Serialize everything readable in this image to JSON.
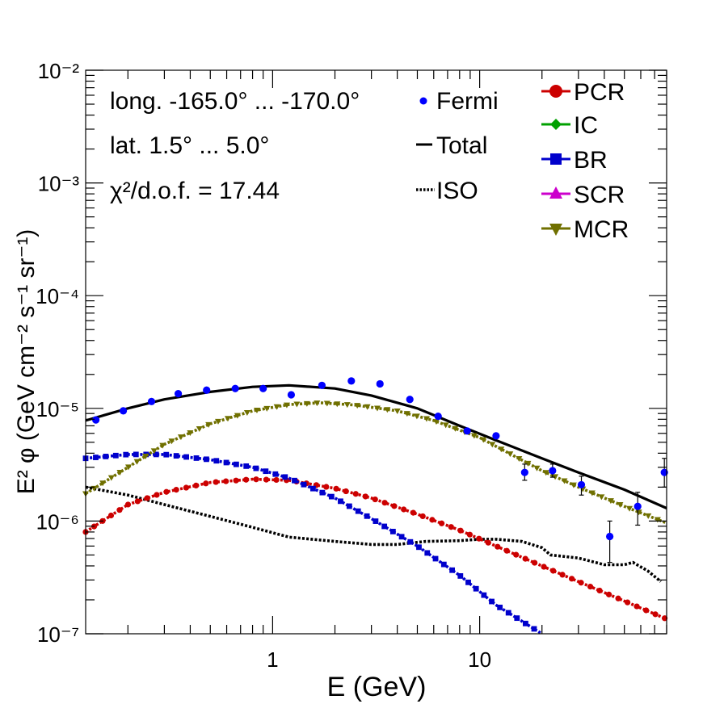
{
  "chart_data": {
    "type": "line",
    "xscale": "log",
    "yscale": "log",
    "xlim": [
      0.125,
      80
    ],
    "ylim": [
      1e-07,
      0.01
    ],
    "xlabel": "E (GeV)",
    "ylabel": "E² φ (GeV cm⁻² s⁻¹ sr⁻¹)",
    "x_tick_labels": [
      "1",
      "10"
    ],
    "y_tick_labels": [
      "10⁻⁷",
      "10⁻⁶",
      "10⁻⁵",
      "10⁻⁴",
      "10⁻³",
      "10⁻²"
    ],
    "annotations": {
      "longitude": "long. -165.0° ... -170.0°",
      "latitude": "lat. 1.5° ... 5.0°",
      "chi2": "χ²/d.o.f. = 17.44"
    },
    "legend_left": [
      {
        "key": "fermi",
        "label": "Fermi",
        "color": "#0000ff",
        "marker": "dot"
      },
      {
        "key": "total",
        "label": "Total",
        "color": "#000000",
        "marker": "line"
      },
      {
        "key": "iso",
        "label": "ISO",
        "color": "#000000",
        "marker": "dotted-line"
      }
    ],
    "legend_right": [
      {
        "key": "pcr",
        "label": "PCR",
        "color": "#cc0000",
        "marker": "circle"
      },
      {
        "key": "ic",
        "label": "IC",
        "color": "#00a000",
        "marker": "diamond"
      },
      {
        "key": "br",
        "label": "BR",
        "color": "#0000cc",
        "marker": "square"
      },
      {
        "key": "scr",
        "label": "SCR",
        "color": "#cc00cc",
        "marker": "triangle-up"
      },
      {
        "key": "mcr",
        "label": "MCR",
        "color": "#707000",
        "marker": "triangle-down"
      }
    ],
    "fermi": {
      "name": "Fermi",
      "color": "#0000ff",
      "points": [
        {
          "x": 0.14,
          "y": 7.9e-06
        },
        {
          "x": 0.19,
          "y": 9.5e-06
        },
        {
          "x": 0.26,
          "y": 1.15e-05
        },
        {
          "x": 0.35,
          "y": 1.35e-05
        },
        {
          "x": 0.48,
          "y": 1.45e-05
        },
        {
          "x": 0.66,
          "y": 1.5e-05
        },
        {
          "x": 0.9,
          "y": 1.5e-05
        },
        {
          "x": 1.23,
          "y": 1.32e-05
        },
        {
          "x": 1.73,
          "y": 1.6e-05
        },
        {
          "x": 2.4,
          "y": 1.75e-05
        },
        {
          "x": 3.3,
          "y": 1.65e-05
        },
        {
          "x": 4.6,
          "y": 1.2e-05
        },
        {
          "x": 6.3,
          "y": 8.5e-06
        },
        {
          "x": 8.7,
          "y": 6.3e-06
        },
        {
          "x": 12.0,
          "y": 5.7e-06
        },
        {
          "x": 16.5,
          "y": 2.7e-06,
          "ylo": 2.3e-06,
          "yhi": 3.2e-06
        },
        {
          "x": 22.5,
          "y": 2.8e-06,
          "ylo": 2.45e-06,
          "yhi": 3.2e-06
        },
        {
          "x": 31.0,
          "y": 2.1e-06,
          "ylo": 1.7e-06,
          "yhi": 2.5e-06
        },
        {
          "x": 42.5,
          "y": 7.3e-07,
          "ylo": 4.3e-07,
          "yhi": 1e-06
        },
        {
          "x": 58.0,
          "y": 1.35e-06,
          "ylo": 9.2e-07,
          "yhi": 1.8e-06
        },
        {
          "x": 78.0,
          "y": 2.7e-06,
          "ylo": 2e-06,
          "yhi": 3.6e-06
        }
      ]
    },
    "series": [
      {
        "name": "Total",
        "color": "#000000",
        "style": "solid",
        "x": [
          0.125,
          0.2,
          0.3,
          0.5,
          0.8,
          1.2,
          2.0,
          3.0,
          5.0,
          8.0,
          12.0,
          20.0,
          30.0,
          50.0,
          80.0
        ],
        "y": [
          7.8e-06,
          1e-05,
          1.2e-05,
          1.4e-05,
          1.55e-05,
          1.6e-05,
          1.5e-05,
          1.3e-05,
          1e-05,
          7e-06,
          5.2e-06,
          3.6e-06,
          2.7e-06,
          1.9e-06,
          1.3e-06
        ]
      },
      {
        "name": "ISO",
        "color": "#000000",
        "style": "dotted",
        "x": [
          0.125,
          0.2,
          0.3,
          0.5,
          0.8,
          1.2,
          2.0,
          3.0,
          4.0,
          5.5,
          8.0,
          10.0,
          12.0,
          16.0,
          20.0,
          22.0,
          30.0,
          40.0,
          50.0,
          55.0,
          65.0,
          75.0
        ],
        "y": [
          2e-06,
          1.7e-06,
          1.4e-06,
          1.1e-06,
          8.8e-07,
          7.2e-07,
          6.6e-07,
          6.2e-07,
          6.2e-07,
          6.6e-07,
          6.7e-07,
          6.9e-07,
          6.9e-07,
          6.6e-07,
          5.8e-07,
          5e-07,
          4.7e-07,
          4.1e-07,
          4.1e-07,
          4.3e-07,
          3.6e-07,
          2.9e-07
        ]
      },
      {
        "name": "PCR",
        "color": "#cc0000",
        "style": "dotted",
        "marker": "circle",
        "x": [
          0.125,
          0.2,
          0.3,
          0.5,
          0.8,
          1.2,
          2.0,
          3.0,
          5.0,
          8.0,
          12.0,
          20.0,
          30.0,
          50.0,
          80.0
        ],
        "y": [
          8e-07,
          1.4e-06,
          1.8e-06,
          2.2e-06,
          2.35e-06,
          2.3e-06,
          1.95e-06,
          1.6e-06,
          1.15e-06,
          8.3e-07,
          6e-07,
          4e-07,
          2.9e-07,
          1.95e-07,
          1.35e-07
        ]
      },
      {
        "name": "BR",
        "color": "#0000cc",
        "style": "dotted",
        "marker": "square",
        "x": [
          0.125,
          0.2,
          0.3,
          0.5,
          0.8,
          1.2,
          2.0,
          3.0,
          5.0,
          8.0,
          12.0,
          20.0
        ],
        "y": [
          3.6e-06,
          3.9e-06,
          3.9e-06,
          3.5e-06,
          3e-06,
          2.4e-06,
          1.6e-06,
          1.05e-06,
          6e-07,
          3.3e-07,
          1.8e-07,
          1e-07
        ]
      },
      {
        "name": "MCR",
        "color": "#707000",
        "style": "dotted",
        "marker": "triangle-down",
        "x": [
          0.125,
          0.2,
          0.3,
          0.5,
          0.8,
          1.2,
          1.7,
          2.5,
          4.0,
          6.0,
          10.0,
          15.0,
          20.0,
          30.0,
          50.0,
          80.0
        ],
        "y": [
          1.75e-06,
          3e-06,
          4.8e-06,
          7.3e-06,
          9.5e-06,
          1.08e-05,
          1.12e-05,
          1.07e-05,
          9.5e-06,
          7.8e-06,
          5.5e-06,
          3.7e-06,
          2.8e-06,
          2e-06,
          1.35e-06,
          9.6e-07
        ]
      }
    ]
  }
}
